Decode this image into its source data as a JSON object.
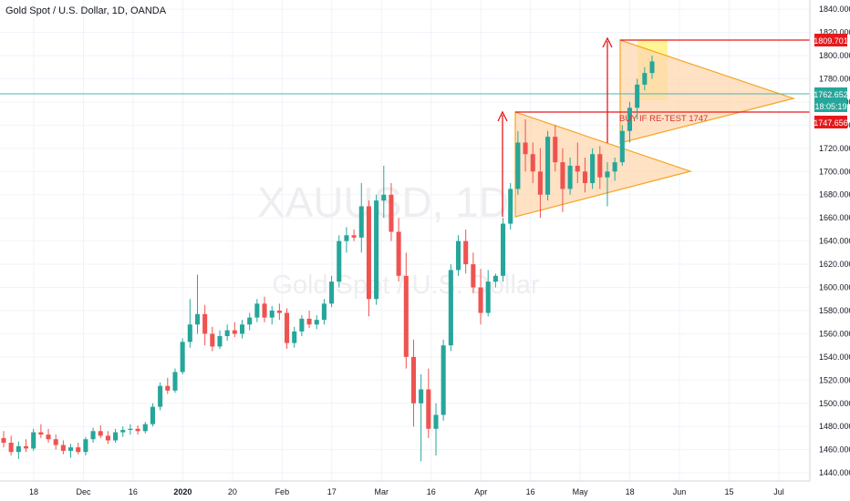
{
  "title": "Gold Spot / U.S. Dollar, 1D, OANDA",
  "watermark": {
    "symbol": "XAUUSD, 1D",
    "name": "Gold Spot / U.S. Dollar"
  },
  "colors": {
    "up": "#26a69a",
    "down": "#ef5350",
    "triangle": "#f5a623",
    "triangle_fill": "#ffd7b0",
    "highlight": "#fff27a",
    "level_red": "#e6191c",
    "level_teal": "#4cb5ad"
  },
  "price_labels": {
    "target": "1809.701",
    "current": "1762.652",
    "countdown": "18:05:19",
    "retest": "1747.656"
  },
  "annotation": "BUY IF RE-TEST 1747",
  "chart_data": {
    "type": "candlestick",
    "ylim": [
      1433,
      1848
    ],
    "y_ticks": [
      1440,
      1460,
      1480,
      1500,
      1520,
      1540,
      1560,
      1580,
      1600,
      1620,
      1640,
      1660,
      1680,
      1700,
      1720,
      1740,
      1760,
      1780,
      1800,
      1820,
      1840
    ],
    "x_ticks": [
      "18",
      "Dec",
      "16",
      "2020",
      "20",
      "Feb",
      "17",
      "Mar",
      "16",
      "Apr",
      "16",
      "May",
      "18",
      "Jun",
      "15",
      "Jul"
    ],
    "levels": {
      "target": 1809.701,
      "current": 1762.652,
      "retest": 1747.656
    },
    "candles": [
      [
        1470,
        1476,
        1462,
        1466
      ],
      [
        1466,
        1472,
        1455,
        1458
      ],
      [
        1458,
        1467,
        1452,
        1463
      ],
      [
        1463,
        1469,
        1458,
        1461
      ],
      [
        1461,
        1478,
        1459,
        1475
      ],
      [
        1475,
        1482,
        1470,
        1473
      ],
      [
        1473,
        1478,
        1466,
        1469
      ],
      [
        1469,
        1473,
        1460,
        1464
      ],
      [
        1464,
        1468,
        1456,
        1459
      ],
      [
        1459,
        1465,
        1453,
        1462
      ],
      [
        1462,
        1466,
        1456,
        1458
      ],
      [
        1458,
        1471,
        1455,
        1469
      ],
      [
        1469,
        1479,
        1466,
        1476
      ],
      [
        1476,
        1481,
        1470,
        1472
      ],
      [
        1472,
        1476,
        1465,
        1468
      ],
      [
        1468,
        1478,
        1466,
        1475
      ],
      [
        1475,
        1480,
        1471,
        1477
      ],
      [
        1477,
        1482,
        1473,
        1478
      ],
      [
        1478,
        1481,
        1473,
        1476
      ],
      [
        1476,
        1484,
        1474,
        1482
      ],
      [
        1482,
        1500,
        1480,
        1497
      ],
      [
        1497,
        1518,
        1494,
        1515
      ],
      [
        1515,
        1522,
        1508,
        1511
      ],
      [
        1511,
        1530,
        1509,
        1527
      ],
      [
        1527,
        1556,
        1525,
        1553
      ],
      [
        1553,
        1590,
        1548,
        1568
      ],
      [
        1568,
        1611,
        1560,
        1577
      ],
      [
        1577,
        1585,
        1550,
        1560
      ],
      [
        1560,
        1566,
        1545,
        1549
      ],
      [
        1549,
        1563,
        1547,
        1558
      ],
      [
        1558,
        1568,
        1554,
        1563
      ],
      [
        1563,
        1570,
        1557,
        1560
      ],
      [
        1560,
        1572,
        1556,
        1568
      ],
      [
        1568,
        1578,
        1563,
        1574
      ],
      [
        1574,
        1590,
        1570,
        1586
      ],
      [
        1586,
        1592,
        1570,
        1574
      ],
      [
        1574,
        1584,
        1568,
        1580
      ],
      [
        1580,
        1586,
        1572,
        1578
      ],
      [
        1578,
        1582,
        1547,
        1552
      ],
      [
        1552,
        1566,
        1548,
        1562
      ],
      [
        1562,
        1576,
        1558,
        1573
      ],
      [
        1573,
        1580,
        1565,
        1568
      ],
      [
        1568,
        1576,
        1564,
        1572
      ],
      [
        1572,
        1590,
        1568,
        1586
      ],
      [
        1586,
        1610,
        1583,
        1605
      ],
      [
        1605,
        1645,
        1600,
        1640
      ],
      [
        1640,
        1652,
        1630,
        1645
      ],
      [
        1645,
        1650,
        1640,
        1643
      ],
      [
        1643,
        1690,
        1630,
        1670
      ],
      [
        1670,
        1675,
        1575,
        1590
      ],
      [
        1590,
        1680,
        1585,
        1675
      ],
      [
        1675,
        1705,
        1660,
        1680
      ],
      [
        1680,
        1690,
        1640,
        1648
      ],
      [
        1648,
        1660,
        1605,
        1610
      ],
      [
        1610,
        1630,
        1530,
        1540
      ],
      [
        1540,
        1555,
        1480,
        1500
      ],
      [
        1500,
        1525,
        1450,
        1512
      ],
      [
        1512,
        1530,
        1470,
        1478
      ],
      [
        1478,
        1500,
        1455,
        1490
      ],
      [
        1490,
        1555,
        1485,
        1550
      ],
      [
        1550,
        1620,
        1545,
        1615
      ],
      [
        1615,
        1645,
        1610,
        1640
      ],
      [
        1640,
        1650,
        1612,
        1620
      ],
      [
        1620,
        1630,
        1595,
        1600
      ],
      [
        1600,
        1616,
        1568,
        1578
      ],
      [
        1578,
        1615,
        1575,
        1605
      ],
      [
        1605,
        1612,
        1600,
        1610
      ],
      [
        1610,
        1660,
        1605,
        1655
      ],
      [
        1655,
        1690,
        1650,
        1685
      ],
      [
        1685,
        1735,
        1680,
        1725
      ],
      [
        1725,
        1745,
        1700,
        1715
      ],
      [
        1715,
        1725,
        1690,
        1700
      ],
      [
        1700,
        1720,
        1660,
        1680
      ],
      [
        1680,
        1735,
        1675,
        1730
      ],
      [
        1730,
        1740,
        1700,
        1708
      ],
      [
        1708,
        1720,
        1665,
        1685
      ],
      [
        1685,
        1712,
        1680,
        1705
      ],
      [
        1705,
        1725,
        1690,
        1700
      ],
      [
        1700,
        1712,
        1682,
        1690
      ],
      [
        1690,
        1720,
        1685,
        1715
      ],
      [
        1715,
        1722,
        1685,
        1695
      ],
      [
        1695,
        1708,
        1670,
        1700
      ],
      [
        1700,
        1712,
        1692,
        1708
      ],
      [
        1708,
        1740,
        1705,
        1735
      ],
      [
        1735,
        1760,
        1725,
        1755
      ],
      [
        1755,
        1780,
        1745,
        1775
      ],
      [
        1775,
        1790,
        1770,
        1785
      ],
      [
        1785,
        1800,
        1780,
        1795
      ]
    ]
  }
}
